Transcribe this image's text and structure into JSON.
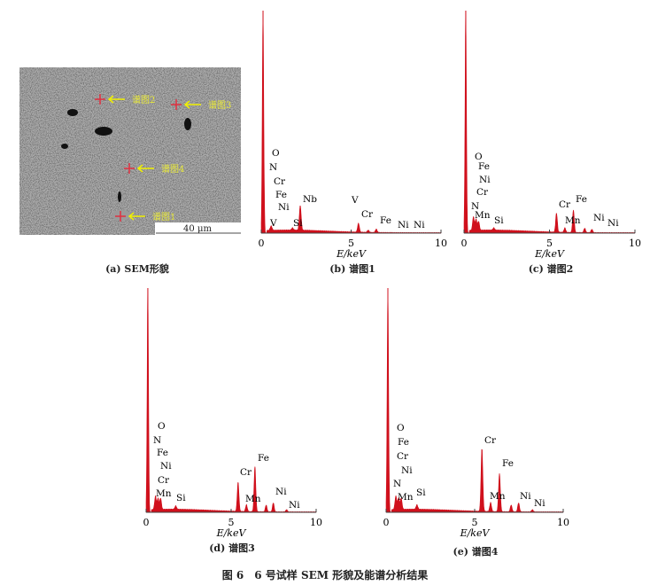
{
  "figure_caption": "图 6　6 号试样 SEM 形貌及能谱分析结果",
  "sem_panel": {
    "caption": "(a) SEM形貌",
    "scale_bar": "40 μm",
    "markers": [
      "谱图2",
      "谱图3",
      "谱图4",
      "谱图1"
    ]
  },
  "colors": {
    "spectrum": "#d0101c",
    "marker": "#e03040",
    "arrow": "#f0f000"
  },
  "chart_data": [
    {
      "type": "area",
      "caption": "(b) 谱图1",
      "xlabel": "E/keV",
      "xlim": [
        0,
        10
      ],
      "xticks": [
        "0",
        "5",
        "10"
      ],
      "y_axis": "none (relative counts)",
      "peak_labels": [
        "O",
        "N",
        "Cr",
        "Fe",
        "Ni",
        "V",
        "Si",
        "Nb",
        "V",
        "Cr",
        "Fe",
        "Ni",
        "Ni"
      ],
      "peaks": [
        {
          "E": 0.1,
          "rel": 1.0
        },
        {
          "E": 0.55,
          "rel": 0.02
        },
        {
          "E": 1.74,
          "rel": 0.01
        },
        {
          "E": 2.17,
          "rel": 0.11
        },
        {
          "E": 5.41,
          "rel": 0.04
        },
        {
          "E": 5.95,
          "rel": 0.01
        },
        {
          "E": 6.4,
          "rel": 0.015
        }
      ]
    },
    {
      "type": "area",
      "caption": "(c) 谱图2",
      "xlabel": "E/keV",
      "xlim": [
        0,
        10
      ],
      "xticks": [
        "0",
        "5",
        "10"
      ],
      "y_axis": "none (relative counts)",
      "peak_labels": [
        "O",
        "Fe",
        "Ni",
        "Cr",
        "N",
        "Mn",
        "Si",
        "Cr",
        "Mn",
        "Fe",
        "Ni",
        "Ni"
      ],
      "peaks": [
        {
          "E": 0.1,
          "rel": 1.0
        },
        {
          "E": 0.55,
          "rel": 0.06
        },
        {
          "E": 0.7,
          "rel": 0.05
        },
        {
          "E": 0.85,
          "rel": 0.04
        },
        {
          "E": 1.74,
          "rel": 0.01
        },
        {
          "E": 5.41,
          "rel": 0.085
        },
        {
          "E": 5.9,
          "rel": 0.02
        },
        {
          "E": 6.4,
          "rel": 0.1
        },
        {
          "E": 7.06,
          "rel": 0.02
        },
        {
          "E": 7.48,
          "rel": 0.015
        }
      ]
    },
    {
      "type": "area",
      "caption": "(d) 谱图3",
      "xlabel": "E/keV",
      "xlim": [
        0,
        10
      ],
      "xticks": [
        "0",
        "5",
        "10"
      ],
      "y_axis": "none (relative counts)",
      "peak_labels": [
        "O",
        "N",
        "Fe",
        "Ni",
        "Cr",
        "Mn",
        "Si",
        "Cr",
        "Mn",
        "Fe",
        "Ni",
        "Ni"
      ],
      "peaks": [
        {
          "E": 0.1,
          "rel": 1.0
        },
        {
          "E": 0.55,
          "rel": 0.06
        },
        {
          "E": 0.7,
          "rel": 0.05
        },
        {
          "E": 0.85,
          "rel": 0.05
        },
        {
          "E": 1.74,
          "rel": 0.015
        },
        {
          "E": 5.41,
          "rel": 0.13
        },
        {
          "E": 5.9,
          "rel": 0.03
        },
        {
          "E": 6.4,
          "rel": 0.2
        },
        {
          "E": 7.06,
          "rel": 0.03
        },
        {
          "E": 7.48,
          "rel": 0.04
        },
        {
          "E": 8.26,
          "rel": 0.01
        }
      ]
    },
    {
      "type": "area",
      "caption": "(e) 谱图4",
      "xlabel": "E/keV",
      "xlim": [
        0,
        10
      ],
      "xticks": [
        "0",
        "5",
        "10"
      ],
      "y_axis": "none (relative counts)",
      "peak_labels": [
        "O",
        "Fe",
        "Cr",
        "Ni",
        "N",
        "Mn",
        "Si",
        "Cr",
        "Mn",
        "Fe",
        "Ni",
        "Ni"
      ],
      "peaks": [
        {
          "E": 0.1,
          "rel": 1.0
        },
        {
          "E": 0.55,
          "rel": 0.06
        },
        {
          "E": 0.7,
          "rel": 0.05
        },
        {
          "E": 0.85,
          "rel": 0.05
        },
        {
          "E": 1.74,
          "rel": 0.02
        },
        {
          "E": 5.41,
          "rel": 0.28
        },
        {
          "E": 5.9,
          "rel": 0.04
        },
        {
          "E": 6.4,
          "rel": 0.17
        },
        {
          "E": 7.06,
          "rel": 0.03
        },
        {
          "E": 7.48,
          "rel": 0.04
        },
        {
          "E": 8.26,
          "rel": 0.01
        }
      ]
    }
  ]
}
